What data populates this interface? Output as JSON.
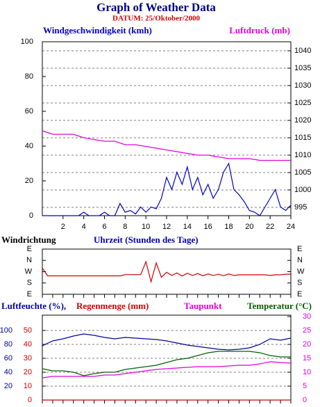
{
  "header": {
    "title": "Graph of Weather Data",
    "subtitle": "DATUM: 25/Oktober/2000"
  },
  "chart_data": [
    {
      "type": "line",
      "x_label": "Uhrzeit (Stunden des Tage)",
      "xlim": [
        0,
        24
      ],
      "xticks": [
        2,
        4,
        6,
        8,
        10,
        12,
        14,
        16,
        18,
        20,
        22,
        24
      ],
      "ylim": [
        0,
        100
      ],
      "yticks": [
        0,
        20,
        40,
        60,
        80,
        100
      ],
      "y2lim": [
        992.6,
        1042.6
      ],
      "y2ticks": [
        995,
        1000,
        1005,
        1010,
        1015,
        1020,
        1025,
        1030,
        1035,
        1040
      ],
      "grid": "y2",
      "series": [
        {
          "name": "Windgeschwindigkeit (kmh)",
          "color": "#0000c0",
          "x": [
            0,
            0.5,
            1,
            1.5,
            2,
            2.5,
            3,
            3.5,
            4,
            4.5,
            5,
            5.5,
            6,
            6.5,
            7,
            7.5,
            8,
            8.5,
            9,
            9.5,
            10,
            10.5,
            11,
            11.5,
            12,
            12.5,
            13,
            13.5,
            14,
            14.5,
            15,
            15.5,
            16,
            16.5,
            17,
            17.5,
            18,
            18.5,
            19,
            19.5,
            20,
            20.5,
            21,
            21.5,
            22,
            22.5,
            23,
            23.5,
            24
          ],
          "values": [
            0,
            0,
            0,
            0,
            0,
            0,
            0,
            0,
            2,
            0,
            0,
            0,
            2,
            0,
            0,
            7,
            2,
            3,
            1,
            5,
            2,
            5,
            4,
            10,
            22,
            15,
            25,
            18,
            28,
            15,
            22,
            12,
            18,
            10,
            15,
            25,
            30,
            15,
            12,
            8,
            3,
            2,
            0,
            5,
            10,
            15,
            5,
            3,
            6
          ]
        },
        {
          "name": "Luftdruck (mb)",
          "color": "#e000e0",
          "axis": "y2",
          "x": [
            0,
            1,
            2,
            3,
            4,
            5,
            6,
            7,
            8,
            9,
            10,
            11,
            12,
            13,
            14,
            15,
            16,
            17,
            18,
            19,
            20,
            21,
            22,
            23,
            24
          ],
          "values": [
            1017,
            1016,
            1016,
            1016,
            1015,
            1014.5,
            1014,
            1014,
            1013,
            1013,
            1012.5,
            1012,
            1011.5,
            1011,
            1010.5,
            1010,
            1010,
            1009.5,
            1009,
            1009,
            1009,
            1008.5,
            1008.5,
            1008.5,
            1008.5
          ]
        }
      ]
    },
    {
      "type": "line",
      "y_label": "Windrichtung",
      "xlim": [
        0,
        24
      ],
      "xticks": [
        0,
        1,
        2,
        3,
        4,
        5,
        6,
        7,
        8,
        9,
        10,
        11,
        12,
        13,
        14,
        15,
        16,
        17,
        18,
        19,
        20,
        21,
        22,
        23,
        24
      ],
      "xtick_labels": false,
      "ylim": [
        90,
        450
      ],
      "yticks": [
        {
          "value": 450,
          "label": "E"
        },
        {
          "value": 360,
          "label": "N"
        },
        {
          "value": 270,
          "label": "W"
        },
        {
          "value": 180,
          "label": "S"
        },
        {
          "value": 90,
          "label": "E"
        }
      ],
      "series": [
        {
          "color": "#d00000",
          "x": [
            0,
            0.5,
            1,
            1.5,
            2,
            2.5,
            3,
            3.5,
            4,
            4.5,
            5,
            5.5,
            6,
            6.5,
            7,
            7.5,
            8,
            8.5,
            9,
            9.5,
            10,
            10.5,
            11,
            11.5,
            12,
            12.5,
            13,
            13.5,
            14,
            14.5,
            15,
            15.5,
            16,
            16.5,
            17,
            17.5,
            18,
            18.5,
            19,
            19.5,
            20,
            20.5,
            21,
            21.5,
            22,
            22.5,
            23,
            23.5,
            24
          ],
          "values": [
            300,
            237,
            237,
            237,
            237,
            237,
            237,
            237,
            237,
            237,
            237,
            237,
            237,
            237,
            237,
            237,
            247,
            247,
            247,
            247,
            350,
            190,
            340,
            225,
            265,
            240,
            260,
            235,
            258,
            240,
            255,
            238,
            252,
            240,
            250,
            238,
            252,
            240,
            245,
            245,
            245,
            245,
            245,
            245,
            240,
            245,
            245,
            250,
            250
          ]
        }
      ]
    },
    {
      "type": "line",
      "xlim": [
        0,
        24
      ],
      "xticks": [
        0,
        1,
        2,
        3,
        4,
        5,
        6,
        7,
        8,
        9,
        10,
        11,
        12,
        13,
        14,
        15,
        16,
        17,
        18,
        19,
        20,
        21,
        22,
        23,
        24
      ],
      "xtick_labels": false,
      "ylim": [
        0,
        122
      ],
      "yticks": [
        20,
        40,
        60,
        80,
        100
      ],
      "y3lim": [
        0,
        61
      ],
      "y3ticks": [
        0,
        10,
        20,
        30,
        40,
        50
      ],
      "y2lim": [
        0,
        30.5
      ],
      "y2ticks": [
        0,
        5,
        10,
        15,
        20,
        25,
        30
      ],
      "grid": "y",
      "series": [
        {
          "name": "Luftfeuchte (%),",
          "color": "#0000a0",
          "x": [
            0,
            1,
            2,
            3,
            4,
            5,
            6,
            7,
            8,
            9,
            10,
            11,
            12,
            13,
            14,
            15,
            16,
            17,
            18,
            19,
            20,
            21,
            22,
            23,
            24
          ],
          "values": [
            78,
            85,
            88,
            92,
            95,
            93,
            90,
            88,
            90,
            89,
            88,
            87,
            85,
            82,
            79,
            77,
            75,
            73,
            72,
            73,
            75,
            80,
            88,
            86,
            89
          ]
        },
        {
          "name": "Regenmenge (mm)",
          "color": "#d00000",
          "axis": "y3",
          "x": [
            0,
            1,
            2,
            3,
            4,
            5,
            6,
            7,
            8,
            9,
            10,
            11,
            12,
            13,
            14,
            15,
            16,
            17,
            18,
            19,
            20,
            21,
            22,
            23,
            24
          ],
          "values": [
            0,
            0,
            0,
            0,
            0,
            0,
            0,
            0,
            0,
            0,
            0,
            0,
            0,
            0,
            0,
            0,
            0,
            0,
            0,
            0,
            0,
            0,
            0,
            0,
            0
          ]
        },
        {
          "name": "Taupunkt",
          "color": "#e000e0",
          "axis": "y2",
          "x": [
            0,
            1,
            2,
            3,
            4,
            5,
            6,
            7,
            8,
            9,
            10,
            11,
            12,
            13,
            14,
            15,
            16,
            17,
            18,
            19,
            20,
            21,
            22,
            23,
            24
          ],
          "values": [
            8,
            8.5,
            8.5,
            8.5,
            8.5,
            8.5,
            9,
            9,
            9.5,
            10,
            10.5,
            11,
            11.25,
            11.5,
            11.75,
            12,
            12,
            12,
            12.25,
            12.5,
            12.5,
            13,
            13.75,
            13.5,
            13.25
          ]
        },
        {
          "name": "Temperatur (°C)",
          "color": "#006000",
          "axis": "y2",
          "x": [
            0,
            1,
            2,
            3,
            4,
            5,
            6,
            7,
            8,
            9,
            10,
            11,
            12,
            13,
            14,
            15,
            16,
            17,
            18,
            19,
            20,
            21,
            22,
            23,
            24
          ],
          "values": [
            11.25,
            10.5,
            10.5,
            10,
            8.75,
            9.5,
            10,
            10,
            11,
            11.5,
            12,
            12.5,
            13.5,
            14.5,
            15,
            16,
            17,
            17.5,
            17.5,
            17.5,
            17.5,
            17,
            16,
            15.5,
            15.5
          ]
        }
      ]
    }
  ]
}
